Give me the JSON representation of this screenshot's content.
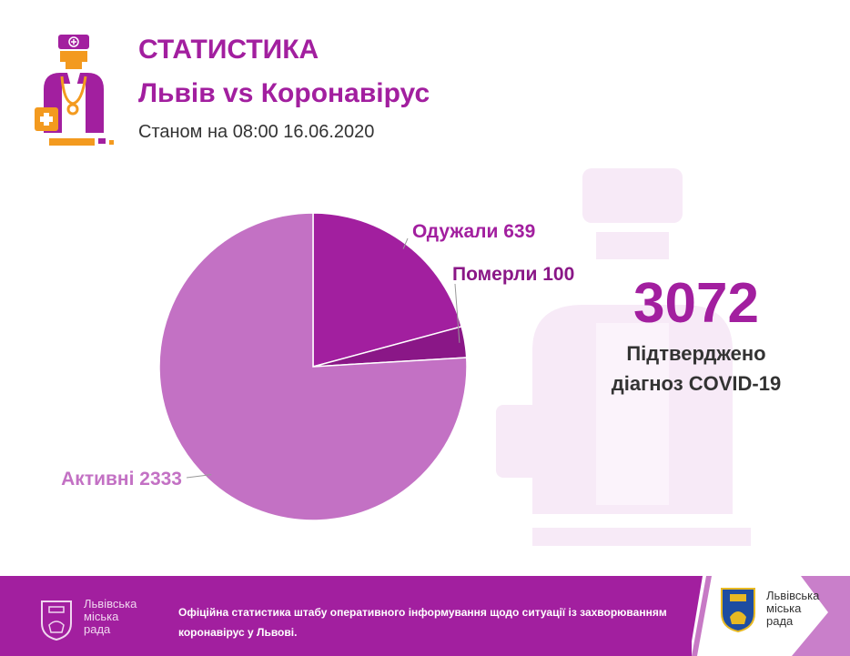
{
  "header": {
    "title": "СТАТИСТИКА",
    "subtitle": "Львів vs Коронавірус",
    "date": "Станом на 08:00 16.06.2020"
  },
  "summary": {
    "total": "3072",
    "caption_line1": "Підтверджено",
    "caption_line2": "діагноз COVID-19"
  },
  "chart_data": {
    "type": "pie",
    "title": "",
    "slices": [
      {
        "label": "Одужали 639",
        "value": 639,
        "color": "#a21f9f"
      },
      {
        "label": "Померли 100",
        "value": 100,
        "color": "#8a1787"
      },
      {
        "label": "Активні 2333",
        "value": 2333,
        "color": "#c371c4"
      }
    ]
  },
  "footer": {
    "org_name_line1": "Львівська",
    "org_name_line2": "міська",
    "org_name_line3": "рада",
    "text_line1": "Офіційна статистика штабу оперативного інформування щодо ситуації із захворюванням",
    "text_line2": "коронавірус у Львові."
  },
  "colors": {
    "brand": "#a21f9f",
    "accent_orange": "#f39a1f"
  }
}
